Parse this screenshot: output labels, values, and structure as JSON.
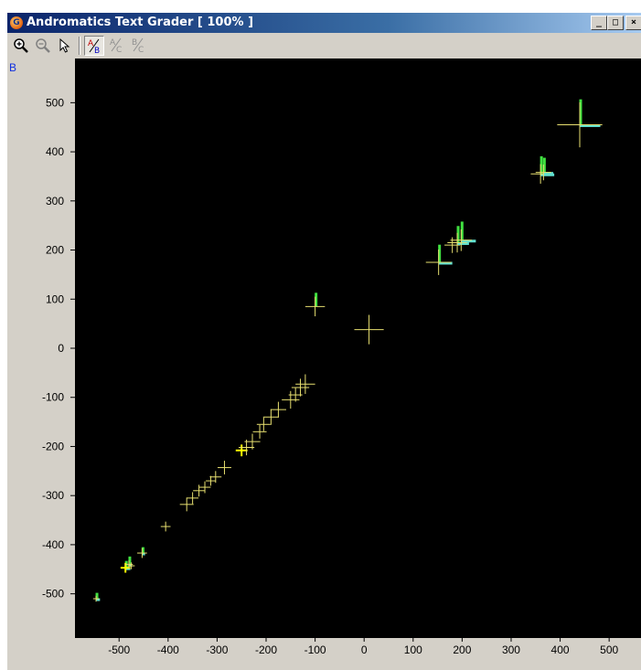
{
  "window": {
    "title": "Andromatics Text Grader  [ 100% ]",
    "app_icon_letter": "G",
    "controls": {
      "minimize": "_",
      "maximize": "□",
      "close": "×"
    }
  },
  "toolbar": {
    "buttons": [
      {
        "name": "zoom-in",
        "icon": "zoom-in-icon",
        "active": false,
        "enabled": true
      },
      {
        "name": "zoom-out",
        "icon": "zoom-out-icon",
        "active": false,
        "enabled": false
      },
      {
        "name": "select",
        "icon": "pointer-icon",
        "active": false,
        "enabled": true
      },
      {
        "name": "a-over-b",
        "icon": "a-over-b-icon",
        "label": "A/B",
        "active": true,
        "enabled": true
      },
      {
        "name": "a-over-c",
        "icon": "a-over-c-icon",
        "label": "A/C",
        "active": false,
        "enabled": false
      },
      {
        "name": "b-over-c",
        "icon": "b-over-c-icon",
        "label": "B/C",
        "active": false,
        "enabled": false
      }
    ]
  },
  "axis_label": "B",
  "colors": {
    "plot_bg": "#000000",
    "panel_bg": "#d4d0c8",
    "cross": "#e8e070",
    "bright": "#ffff00",
    "green": "#40e040",
    "cyan": "#60e0d0"
  },
  "chart_data": {
    "type": "scatter",
    "x_ticks": [
      -500,
      -400,
      -300,
      -200,
      -100,
      0,
      100,
      200,
      300,
      400,
      500
    ],
    "y_ticks": [
      500,
      400,
      300,
      200,
      100,
      0,
      -100,
      -200,
      -300,
      -400,
      -500
    ],
    "xlim": [
      -590,
      565
    ],
    "ylim": [
      -590,
      590
    ],
    "grid": false,
    "points": [
      {
        "x": -547,
        "y": -510,
        "size": 6,
        "green": 12,
        "cyan": 8
      },
      {
        "x": -487,
        "y": -447,
        "size": 10,
        "green": 14,
        "cyan": 10,
        "bright": true
      },
      {
        "x": -480,
        "y": -440,
        "size": 8,
        "green": 16,
        "cyan": 6
      },
      {
        "x": -475,
        "y": -443,
        "size": 7
      },
      {
        "x": -453,
        "y": -417,
        "size": 10,
        "green": 12,
        "cyan": 6
      },
      {
        "x": -405,
        "y": -363,
        "size": 10
      },
      {
        "x": -362,
        "y": -318,
        "size": 14
      },
      {
        "x": -350,
        "y": -305,
        "size": 12
      },
      {
        "x": -337,
        "y": -290,
        "size": 12
      },
      {
        "x": -325,
        "y": -283,
        "size": 12
      },
      {
        "x": -313,
        "y": -270,
        "size": 10
      },
      {
        "x": -303,
        "y": -262,
        "size": 12
      },
      {
        "x": -285,
        "y": -243,
        "size": 14
      },
      {
        "x": -250,
        "y": -208,
        "size": 12,
        "bright": true
      },
      {
        "x": -240,
        "y": -202,
        "size": 16
      },
      {
        "x": -228,
        "y": -190,
        "size": 16
      },
      {
        "x": -213,
        "y": -170,
        "size": 14
      },
      {
        "x": -205,
        "y": -155,
        "size": 14
      },
      {
        "x": -190,
        "y": -140,
        "size": 16
      },
      {
        "x": -175,
        "y": -125,
        "size": 16
      },
      {
        "x": -150,
        "y": -105,
        "size": 18
      },
      {
        "x": -140,
        "y": -95,
        "size": 14
      },
      {
        "x": -130,
        "y": -80,
        "size": 18
      },
      {
        "x": -120,
        "y": -73,
        "size": 20
      },
      {
        "x": -100,
        "y": 85,
        "size": 20,
        "green": 28
      },
      {
        "x": 10,
        "y": 38,
        "size": 30
      },
      {
        "x": 152,
        "y": 175,
        "size": 26,
        "green": 36,
        "cyan": 28
      },
      {
        "x": 180,
        "y": 210,
        "size": 16
      },
      {
        "x": 190,
        "y": 215,
        "size": 20,
        "green": 34,
        "cyan": 24
      },
      {
        "x": 198,
        "y": 220,
        "size": 22,
        "green": 38,
        "cyan": 30
      },
      {
        "x": 360,
        "y": 355,
        "size": 20,
        "green": 36,
        "cyan": 28
      },
      {
        "x": 366,
        "y": 358,
        "size": 16,
        "green": 30,
        "cyan": 20
      },
      {
        "x": 440,
        "y": 455,
        "size": 46,
        "green": 52,
        "cyan": 42
      }
    ]
  }
}
